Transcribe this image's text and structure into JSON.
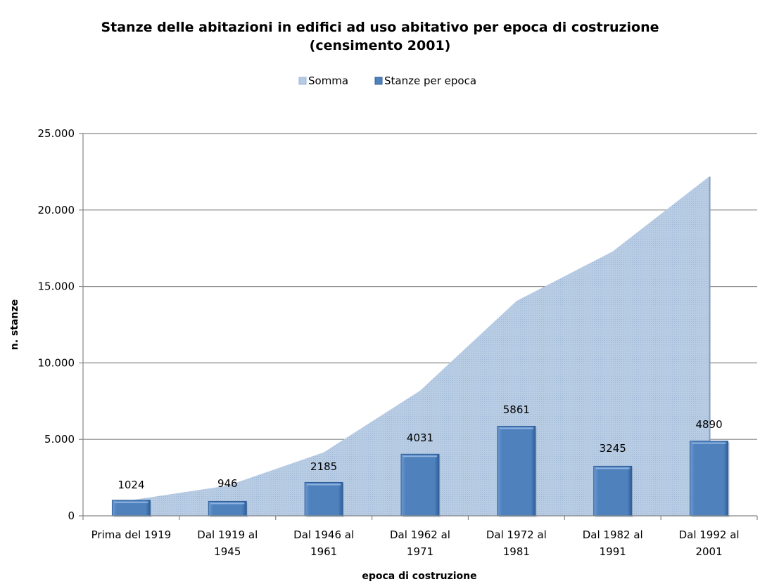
{
  "chart_data": {
    "type": "bar",
    "title_line1": "Stanze delle abitazioni in edifici ad uso abitativo per epoca di costruzione",
    "title_line2": "(censimento 2001)",
    "xlabel": "epoca di costruzione",
    "ylabel": "n. stanze",
    "ylim": [
      0,
      25000
    ],
    "yticks": [
      0,
      5000,
      10000,
      15000,
      20000,
      25000
    ],
    "ytick_labels": [
      "0",
      "5.000",
      "10.000",
      "15.000",
      "20.000",
      "25.000"
    ],
    "grid": true,
    "legend_position": "top",
    "categories": [
      [
        "Prima del 1919"
      ],
      [
        "Dal 1919 al",
        "1945"
      ],
      [
        "Dal 1946 al",
        "1961"
      ],
      [
        "Dal 1962 al",
        "1971"
      ],
      [
        "Dal 1972 al",
        "1981"
      ],
      [
        "Dal 1982 al",
        "1991"
      ],
      [
        "Dal 1992 al",
        "2001"
      ]
    ],
    "series": [
      {
        "name": "Somma",
        "type": "area",
        "color": "#b8cce4",
        "values": [
          1024,
          1970,
          4155,
          8186,
          14047,
          17292,
          22182
        ]
      },
      {
        "name": "Stanze per epoca",
        "type": "bar",
        "color": "#4f81bd",
        "values": [
          1024,
          946,
          2185,
          4031,
          5861,
          3245,
          4890
        ]
      }
    ]
  }
}
